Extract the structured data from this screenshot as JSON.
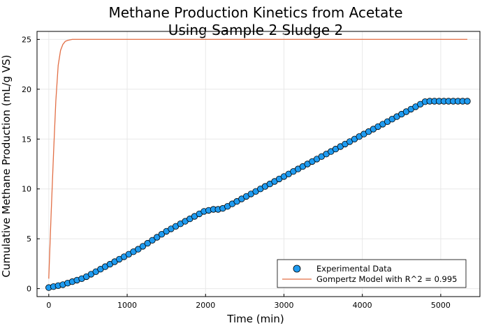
{
  "chart_data": {
    "type": "scatter",
    "title_line1": "Methane Production Kinetics from Acetate",
    "title_line2": "Using Sample 2 Sludge 2",
    "xlabel": "Time (min)",
    "ylabel": "Cumulative Methane Production (mL/g VS)",
    "xlim": [
      -150,
      5500
    ],
    "ylim": [
      -0.8,
      25.8
    ],
    "xticks": [
      0,
      1000,
      2000,
      3000,
      4000,
      5000
    ],
    "yticks": [
      0,
      5,
      10,
      15,
      20,
      25
    ],
    "grid": true,
    "legend_position": "bottom-right",
    "legend": {
      "experimental": "Experimental Data",
      "model": "Gompertz Model with R^2 = 0.995"
    },
    "series": [
      {
        "name": "Experimental Data",
        "style": "markers",
        "color": "#1f9bf0",
        "x": [
          0,
          60,
          120,
          180,
          240,
          300,
          360,
          420,
          480,
          540,
          600,
          660,
          720,
          780,
          840,
          900,
          960,
          1020,
          1080,
          1140,
          1200,
          1260,
          1320,
          1380,
          1440,
          1500,
          1560,
          1620,
          1680,
          1740,
          1800,
          1860,
          1920,
          1980,
          2040,
          2100,
          2160,
          2220,
          2280,
          2340,
          2400,
          2460,
          2520,
          2580,
          2640,
          2700,
          2760,
          2820,
          2880,
          2940,
          3000,
          3060,
          3120,
          3180,
          3240,
          3300,
          3360,
          3420,
          3480,
          3540,
          3600,
          3660,
          3720,
          3780,
          3840,
          3900,
          3960,
          4020,
          4080,
          4140,
          4200,
          4260,
          4320,
          4380,
          4440,
          4500,
          4560,
          4620,
          4680,
          4740,
          4800,
          4860,
          4920,
          4980,
          5040,
          5100,
          5160,
          5220,
          5280,
          5340
        ],
        "y": [
          0.1,
          0.2,
          0.3,
          0.4,
          0.55,
          0.7,
          0.85,
          1.0,
          1.2,
          1.45,
          1.7,
          1.95,
          2.2,
          2.45,
          2.7,
          2.95,
          3.2,
          3.45,
          3.7,
          3.95,
          4.25,
          4.55,
          4.85,
          5.15,
          5.45,
          5.75,
          6.0,
          6.25,
          6.5,
          6.75,
          7.0,
          7.25,
          7.5,
          7.75,
          7.85,
          7.95,
          7.95,
          8.05,
          8.25,
          8.5,
          8.75,
          9.0,
          9.25,
          9.5,
          9.75,
          10.0,
          10.25,
          10.5,
          10.75,
          11.0,
          11.25,
          11.5,
          11.75,
          12.0,
          12.25,
          12.5,
          12.75,
          13.0,
          13.25,
          13.5,
          13.75,
          14.0,
          14.25,
          14.5,
          14.75,
          15.0,
          15.25,
          15.5,
          15.75,
          16.0,
          16.25,
          16.5,
          16.75,
          17.0,
          17.25,
          17.5,
          17.75,
          18.0,
          18.25,
          18.5,
          18.75,
          18.8,
          18.8,
          18.8,
          18.8,
          18.8,
          18.8,
          18.8,
          18.8,
          18.8
        ]
      },
      {
        "name": "Gompertz Model with R^2 = 0.995",
        "style": "line",
        "color": "#e26f46",
        "x": [
          0,
          30,
          60,
          90,
          120,
          150,
          180,
          210,
          240,
          270,
          300,
          360,
          420,
          500,
          1000,
          2000,
          3000,
          4000,
          5000,
          5340
        ],
        "y": [
          1.0,
          7.5,
          13.5,
          18.8,
          22.4,
          23.9,
          24.5,
          24.8,
          24.9,
          24.95,
          25.0,
          25.0,
          25.0,
          25.0,
          25.0,
          25.0,
          25.0,
          25.0,
          25.0,
          25.0
        ]
      }
    ]
  }
}
